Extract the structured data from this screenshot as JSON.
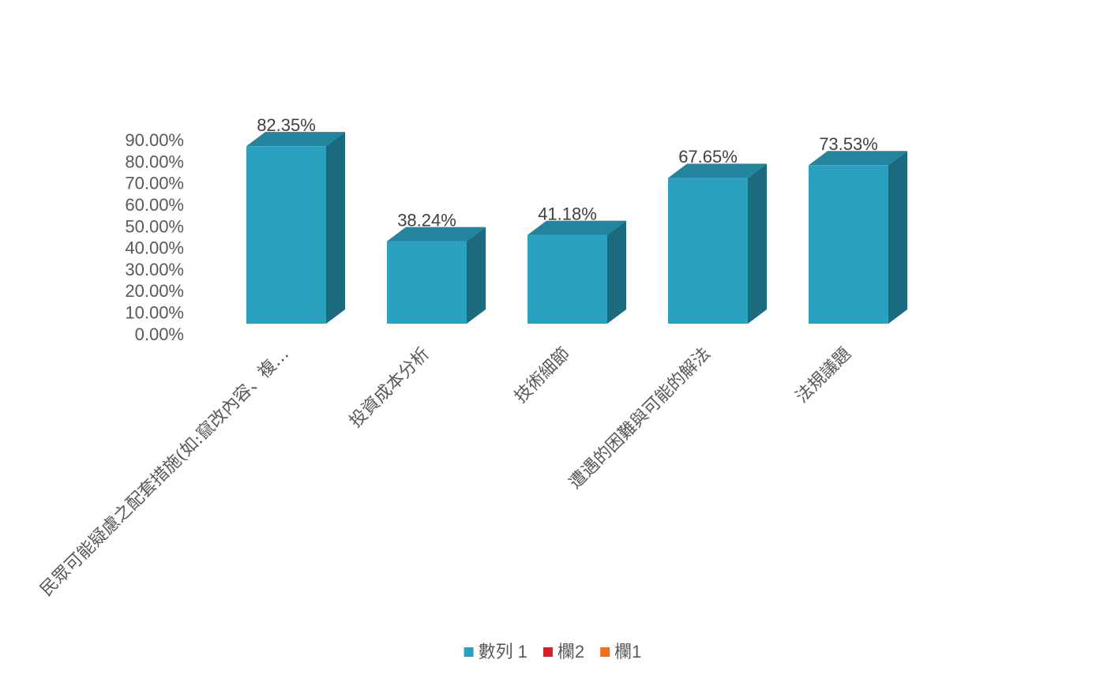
{
  "chart_data": {
    "type": "bar3d",
    "categories": [
      "民眾可能疑慮之配套措施(如:竄改內容、複…",
      "投資成本分析",
      "技術細節",
      "遭遇的困難與可能的解法",
      "法規議題"
    ],
    "series": [
      {
        "name": "數列 1",
        "color": "#2aa1bf",
        "values": [
          82.35,
          38.24,
          41.18,
          67.65,
          73.53
        ],
        "value_labels": [
          "82.35%",
          "38.24%",
          "41.18%",
          "67.65%",
          "73.53%"
        ]
      },
      {
        "name": "欄2",
        "color": "#d62027",
        "values": [
          null,
          null,
          null,
          null,
          null
        ]
      },
      {
        "name": "欄1",
        "color": "#f26b21",
        "values": [
          null,
          null,
          null,
          null,
          null
        ]
      }
    ],
    "ylim": [
      0,
      90
    ],
    "yticks": [
      {
        "value": 0,
        "label": "0.00%"
      },
      {
        "value": 10,
        "label": "10.00%"
      },
      {
        "value": 20,
        "label": "20.00%"
      },
      {
        "value": 30,
        "label": "30.00%"
      },
      {
        "value": 40,
        "label": "40.00%"
      },
      {
        "value": 50,
        "label": "50.00%"
      },
      {
        "value": 60,
        "label": "60.00%"
      },
      {
        "value": 70,
        "label": "70.00%"
      },
      {
        "value": 80,
        "label": "80.00%"
      },
      {
        "value": 90,
        "label": "90.00%"
      }
    ],
    "legend": "bottom"
  }
}
